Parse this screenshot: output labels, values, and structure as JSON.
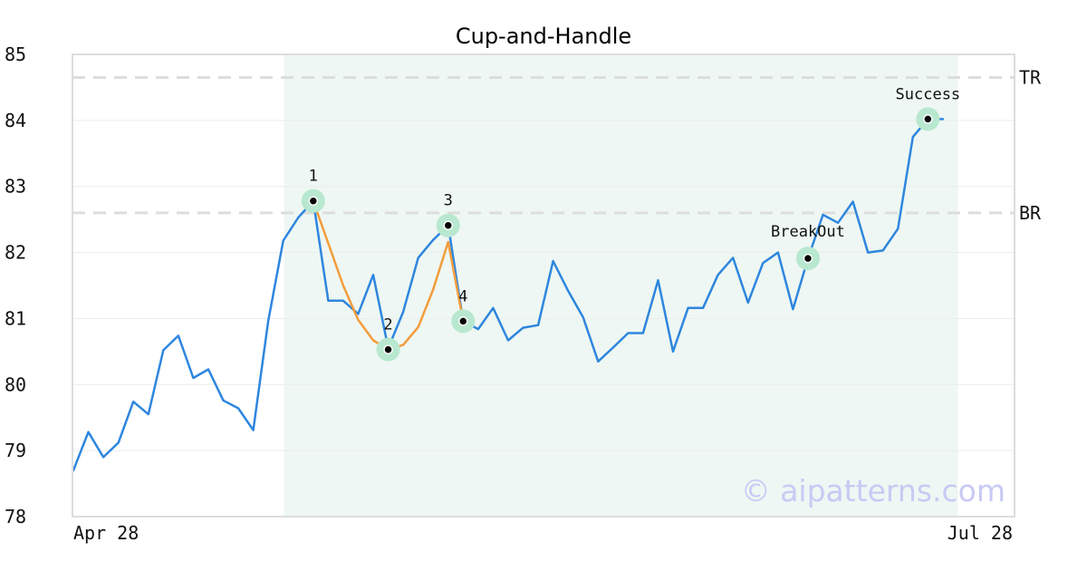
{
  "chart_data": {
    "type": "line",
    "title": "Cup-and-Handle",
    "xlabel": "",
    "ylabel": "",
    "ylim": [
      78,
      85
    ],
    "yticks": [
      "78",
      "79",
      "80",
      "81",
      "82",
      "83",
      "84",
      "85"
    ],
    "xtick_labels": [
      "Apr 28",
      "Jul 28"
    ],
    "grid": true,
    "series": [
      {
        "color": "#2e86de",
        "values": [
          78.7,
          79.28,
          78.9,
          79.12,
          79.74,
          79.55,
          80.52,
          80.74,
          80.1,
          80.23,
          79.76,
          79.64,
          79.31,
          80.96,
          82.18,
          82.53,
          82.78,
          81.27,
          81.27,
          81.07,
          81.66,
          80.55,
          81.1,
          81.92,
          82.19,
          82.41,
          80.96,
          80.84,
          81.16,
          80.67,
          80.86,
          80.9,
          81.87,
          81.42,
          81.02,
          80.35,
          80.56,
          80.78,
          80.78,
          81.58,
          80.5,
          81.16,
          81.16,
          81.66,
          81.92,
          81.24,
          81.84,
          82.0,
          81.14,
          81.91,
          82.57,
          82.45,
          82.77,
          82.0,
          82.03,
          82.36,
          83.75,
          84.02,
          84.02
        ]
      },
      {
        "color": "#f39c3c",
        "x": [
          16,
          18,
          19,
          20,
          21,
          22,
          23,
          24,
          25,
          26
        ],
        "values": [
          82.78,
          81.5,
          80.98,
          80.67,
          80.53,
          80.6,
          80.87,
          81.44,
          82.16,
          80.96
        ]
      }
    ],
    "levels": [
      {
        "label": "TR",
        "value": 84.65
      },
      {
        "label": "BR",
        "value": 82.6
      }
    ],
    "shaded_range": [
      14,
      59
    ],
    "markers": [
      {
        "label": "1",
        "x": 16,
        "y": 82.78
      },
      {
        "label": "2",
        "x": 21,
        "y": 80.53
      },
      {
        "label": "3",
        "x": 25,
        "y": 82.41
      },
      {
        "label": "4",
        "x": 26,
        "y": 80.96
      },
      {
        "label": "BreakOut",
        "x": 49,
        "y": 81.91
      },
      {
        "label": "Success",
        "x": 57,
        "y": 84.02
      }
    ],
    "colors": {
      "price": "#2e86de",
      "pattern": "#f39c3c",
      "shade": "#eef7f3",
      "marker_halo": "#b8e8cf",
      "marker_dot": "#000000",
      "level_line": "#dddddd"
    },
    "watermark": "© aipatterns.com"
  }
}
